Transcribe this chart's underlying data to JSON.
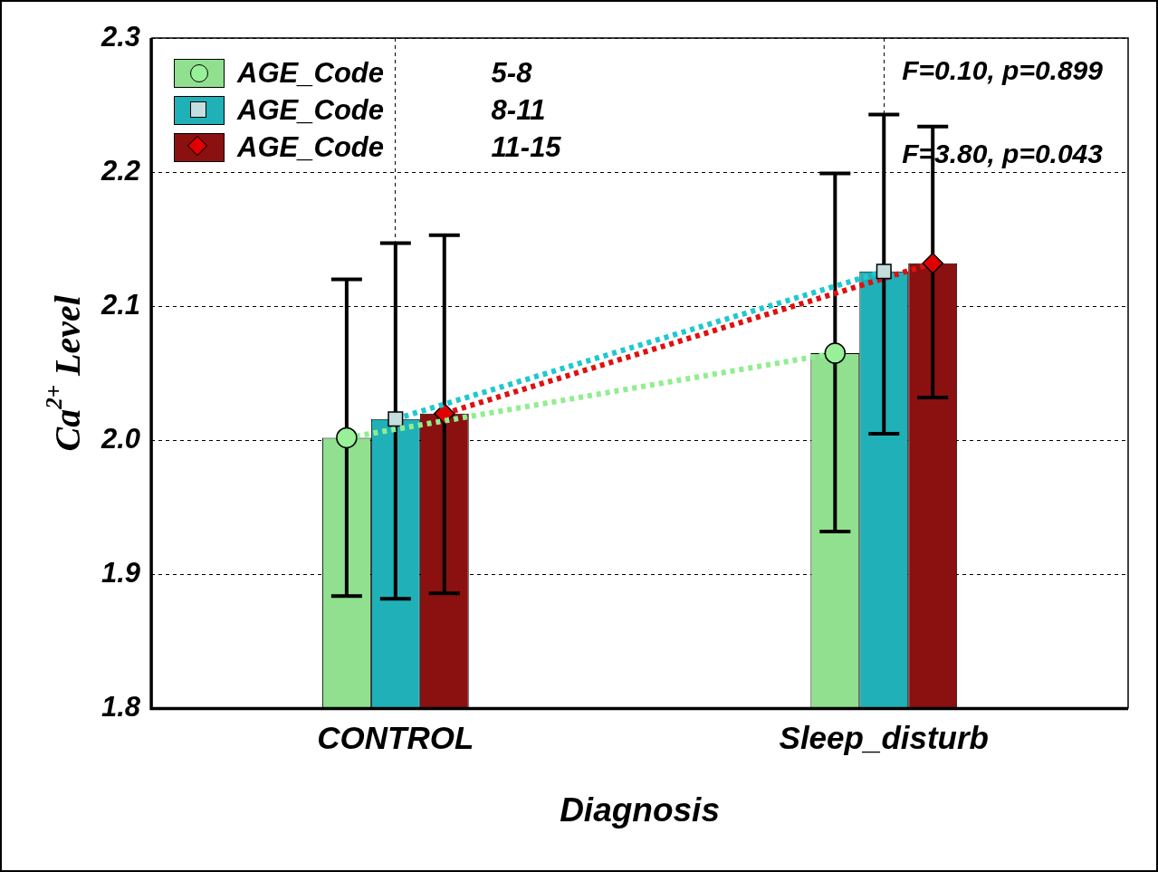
{
  "chart_data": {
    "type": "bar",
    "xlabel": "Diagnosis",
    "ylabel": "Ca$^{2+}$ Level",
    "categories": [
      "CONTROL",
      "Sleep_disturb"
    ],
    "series": [
      {
        "name": "AGE_Code 5-8",
        "color": "#90e090",
        "values": [
          2.002,
          2.065
        ],
        "errors": [
          [
            1.884,
            2.12
          ],
          [
            1.932,
            2.199
          ]
        ]
      },
      {
        "name": "AGE_Code 8-11",
        "color": "#20b0b8",
        "values": [
          2.016,
          2.126
        ],
        "errors": [
          [
            1.882,
            2.147
          ],
          [
            2.005,
            2.243
          ]
        ]
      },
      {
        "name": "AGE_Code 11-15",
        "color": "#8b1010",
        "values": [
          2.02,
          2.132
        ],
        "errors": [
          [
            1.886,
            2.153
          ],
          [
            2.032,
            2.234
          ]
        ]
      },
      {
        "type": "line",
        "color": "#90ee90",
        "marker": "circle",
        "line_style": "dotted",
        "values": [
          2.002,
          2.065
        ]
      },
      {
        "type": "line",
        "color": "#20c8d0",
        "marker": "square",
        "line_style": "dotted",
        "values": [
          2.016,
          2.126
        ]
      },
      {
        "type": "line",
        "color": "#e01010",
        "marker": "diamond",
        "line_style": "dotted",
        "values": [
          2.02,
          2.132
        ]
      }
    ],
    "ylim": [
      1.8,
      2.3
    ],
    "yticks": [
      1.8,
      1.9,
      {
        "value": 2.0,
        "label": "2.0"
      },
      2.1,
      2.2,
      2.3
    ],
    "grid": true,
    "legend": "top left",
    "annotations": [
      "F=0.10, p=0.899",
      "F=3.80, p=0.043"
    ]
  }
}
